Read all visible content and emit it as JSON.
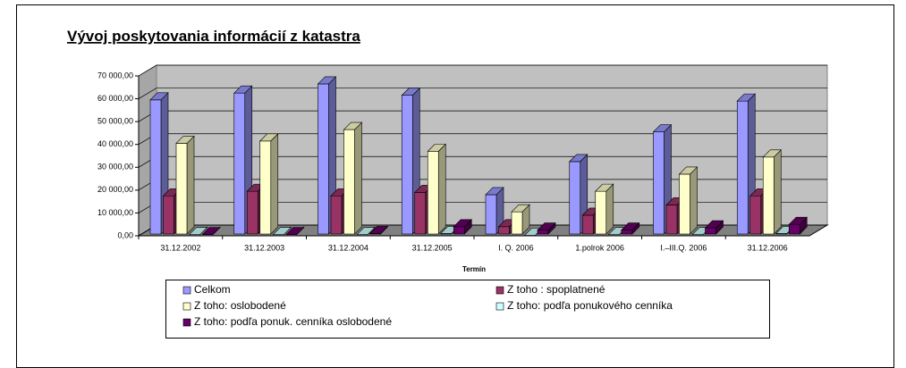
{
  "chart_data": {
    "type": "bar3d",
    "title": "Vývoj poskytovania informácií z katastra",
    "x_label": "Termín",
    "categories": [
      "31.12.2002",
      "31.12.2003",
      "31.12.2004",
      "31.12.2005",
      "I. Q. 2006",
      "1.polrok 2006",
      "I.–III.Q. 2006",
      "31.12.2006"
    ],
    "series": [
      {
        "name": "Celkom",
        "color": "#9999ff",
        "values": [
          59500,
          62500,
          66500,
          61500,
          18000,
          32500,
          45500,
          59000
        ]
      },
      {
        "name": "Z toho : spoplatnené",
        "color": "#993366",
        "values": [
          17500,
          19500,
          17500,
          19000,
          4000,
          9000,
          13500,
          17500
        ]
      },
      {
        "name": "Z toho: oslobodené",
        "color": "#ffffcc",
        "values": [
          40500,
          41500,
          46500,
          37000,
          10500,
          19500,
          27000,
          34500
        ]
      },
      {
        "name": "Z toho:  podľa ponukového cenníka",
        "color": "#ccffff",
        "values": [
          500,
          500,
          500,
          1000,
          200,
          500,
          500,
          1000
        ]
      },
      {
        "name": "Z toho:  podľa ponuk. cenníka oslobodené",
        "color": "#660066",
        "values": [
          500,
          500,
          1000,
          4000,
          2500,
          2500,
          3500,
          5000
        ]
      }
    ],
    "ylim": [
      0,
      70000
    ],
    "yticks": [
      {
        "value": 0,
        "label": "0,00"
      },
      {
        "value": 10000,
        "label": "10 000,00"
      },
      {
        "value": 20000,
        "label": "20 000,00"
      },
      {
        "value": 30000,
        "label": "30 000,00"
      },
      {
        "value": 40000,
        "label": "40 000,00"
      },
      {
        "value": 50000,
        "label": "50 000,00"
      },
      {
        "value": 60000,
        "label": "60 000,00"
      },
      {
        "value": 70000,
        "label": "70 000,00"
      }
    ],
    "grid": true
  }
}
